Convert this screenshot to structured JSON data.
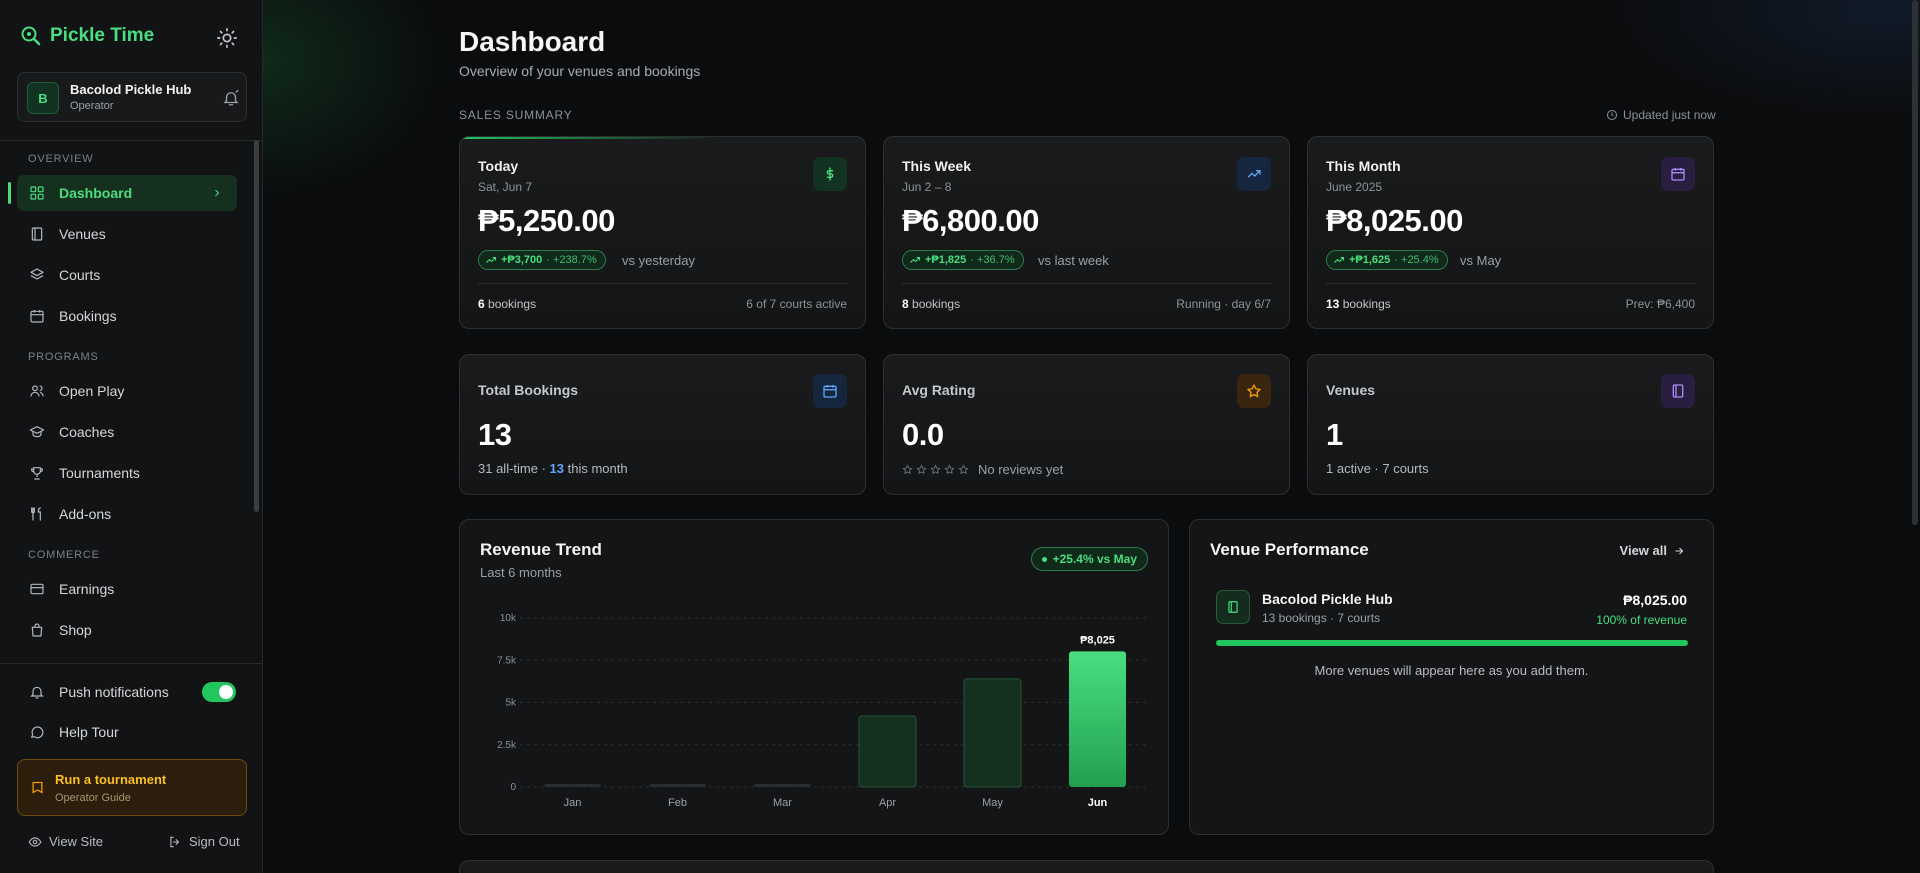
{
  "brand": {
    "name": "Pickle Time"
  },
  "org": {
    "avatar_letter": "B",
    "name": "Bacolod Pickle Hub",
    "role": "Operator"
  },
  "sidebar": {
    "sections": {
      "overview": "OVERVIEW",
      "programs": "PROGRAMS",
      "commerce": "COMMERCE"
    },
    "items": {
      "dashboard": "Dashboard",
      "venues": "Venues",
      "courts": "Courts",
      "bookings": "Bookings",
      "open_play": "Open Play",
      "coaches": "Coaches",
      "tournaments": "Tournaments",
      "addons": "Add-ons",
      "earnings": "Earnings",
      "shop": "Shop"
    },
    "push_notifications": {
      "label": "Push notifications",
      "enabled": true
    },
    "help_tour": "Help Tour",
    "promo": {
      "title": "Run a tournament",
      "subtitle": "Operator Guide"
    },
    "view_site": "View Site",
    "sign_out": "Sign Out"
  },
  "header": {
    "title": "Dashboard",
    "subtitle": "Overview of your venues and bookings"
  },
  "sales_summary": {
    "label": "SALES SUMMARY",
    "updated": "Updated just now",
    "cards": [
      {
        "title": "Today",
        "subtitle": "Sat, Jun 7",
        "value": "₱5,250.00",
        "delta": "+₱3,700",
        "delta_pct": "· +238.7%",
        "compare": "vs yesterday",
        "bookings_count": "6",
        "bookings_label": "bookings",
        "right_note": "6 of 7 courts active",
        "icon": "dollar-icon"
      },
      {
        "title": "This Week",
        "subtitle": "Jun 2 – 8",
        "value": "₱6,800.00",
        "delta": "+₱1,825",
        "delta_pct": "· +36.7%",
        "compare": "vs last week",
        "bookings_count": "8",
        "bookings_label": "bookings",
        "right_note": "Running · day 6/7",
        "icon": "trend-up-icon"
      },
      {
        "title": "This Month",
        "subtitle": "June 2025",
        "value": "₱8,025.00",
        "delta": "+₱1,625",
        "delta_pct": "· +25.4%",
        "compare": "vs May",
        "bookings_count": "13",
        "bookings_label": "bookings",
        "right_note": "Prev: ₱6,400",
        "icon": "calendar-icon"
      }
    ]
  },
  "stats": {
    "total_bookings": {
      "title": "Total Bookings",
      "value": "13",
      "line_a": "31 all-time · ",
      "line_hl": "13",
      "line_b": " this month"
    },
    "avg_rating": {
      "title": "Avg Rating",
      "value": "0.0",
      "stars": 0,
      "note": "No reviews yet"
    },
    "venues": {
      "title": "Venues",
      "value": "1",
      "note": "1 active · 7 courts"
    }
  },
  "revenue": {
    "title": "Revenue Trend",
    "subtitle": "Last 6 months",
    "badge": "+25.4% vs May",
    "top_label": "₱8,025"
  },
  "chart_data": {
    "type": "bar",
    "title": "Revenue Trend",
    "categories": [
      "Jan",
      "Feb",
      "Mar",
      "Apr",
      "May",
      "Jun"
    ],
    "values": [
      0,
      0,
      0,
      4200,
      6400,
      8025
    ],
    "y_ticks": [
      "0",
      "2.5k",
      "5k",
      "7.5k",
      "10k"
    ],
    "ylim": [
      0,
      10000
    ],
    "grid": true,
    "highlight": "Jun"
  },
  "venue_performance": {
    "title": "Venue Performance",
    "view_all": "View all",
    "venue": {
      "name": "Bacolod Pickle Hub",
      "meta": "13 bookings · 7 courts",
      "amount": "₱8,025.00",
      "share": "100% of revenue",
      "share_fraction": 1.0
    },
    "more": "More venues will appear here as you add them."
  },
  "colors": {
    "accent": "#4ade80",
    "blue": "#60a5fa",
    "purple": "#a78bfa",
    "amber": "#f59e0b"
  }
}
